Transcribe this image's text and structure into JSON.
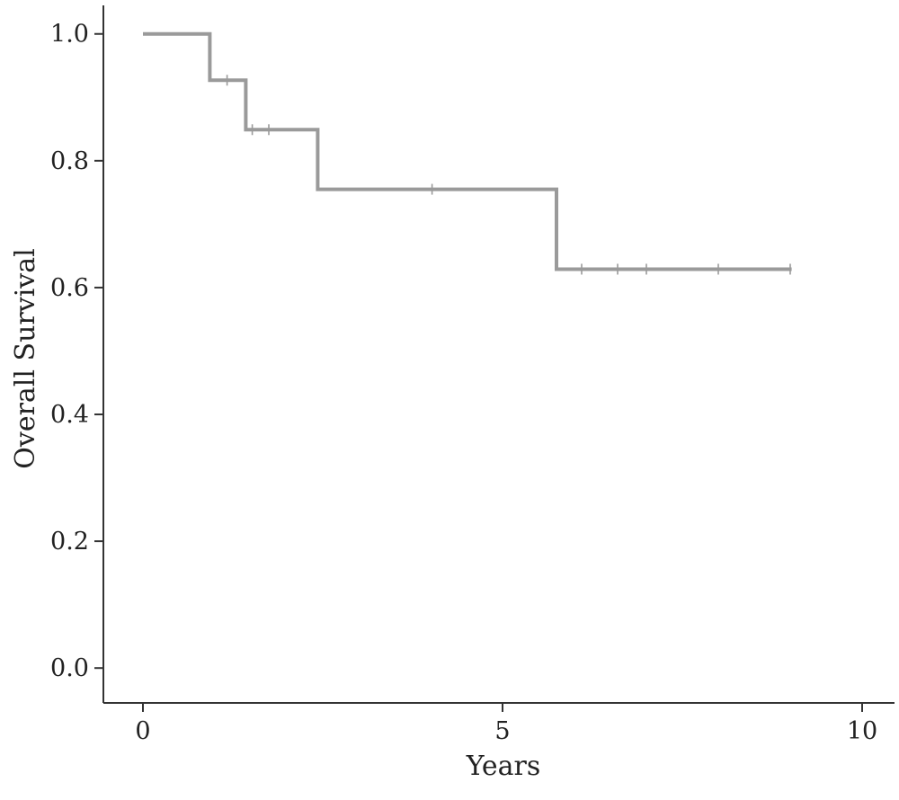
{
  "chart_data": {
    "type": "line",
    "subtype": "kaplan-meier",
    "title": "",
    "xlabel": "Years",
    "ylabel": "Overall Survival",
    "xlim": [
      -0.55,
      10.45
    ],
    "ylim": [
      -0.055,
      1.045
    ],
    "xticks": [
      0,
      5,
      10
    ],
    "xtick_labels": [
      "0",
      "5",
      "10"
    ],
    "yticks": [
      0.0,
      0.2,
      0.4,
      0.6,
      0.8,
      1.0
    ],
    "ytick_labels": [
      "0.0",
      "0.2",
      "0.4",
      "0.6",
      "0.8",
      "1.0"
    ],
    "grid": false,
    "legend": null,
    "series": [
      {
        "color": "#9a9a9a",
        "steps": [
          {
            "x": 0.0,
            "y": 1.0
          },
          {
            "x": 0.93,
            "y": 0.927
          },
          {
            "x": 1.43,
            "y": 0.849
          },
          {
            "x": 2.43,
            "y": 0.755
          },
          {
            "x": 5.75,
            "y": 0.629
          }
        ],
        "end_x": 9.02,
        "censored": [
          {
            "x": 1.17,
            "y": 0.927
          },
          {
            "x": 1.52,
            "y": 0.849
          },
          {
            "x": 1.75,
            "y": 0.849
          },
          {
            "x": 4.02,
            "y": 0.755
          },
          {
            "x": 6.1,
            "y": 0.629
          },
          {
            "x": 6.6,
            "y": 0.629
          },
          {
            "x": 7.0,
            "y": 0.629
          },
          {
            "x": 8.0,
            "y": 0.629
          },
          {
            "x": 9.0,
            "y": 0.629
          }
        ]
      }
    ]
  }
}
